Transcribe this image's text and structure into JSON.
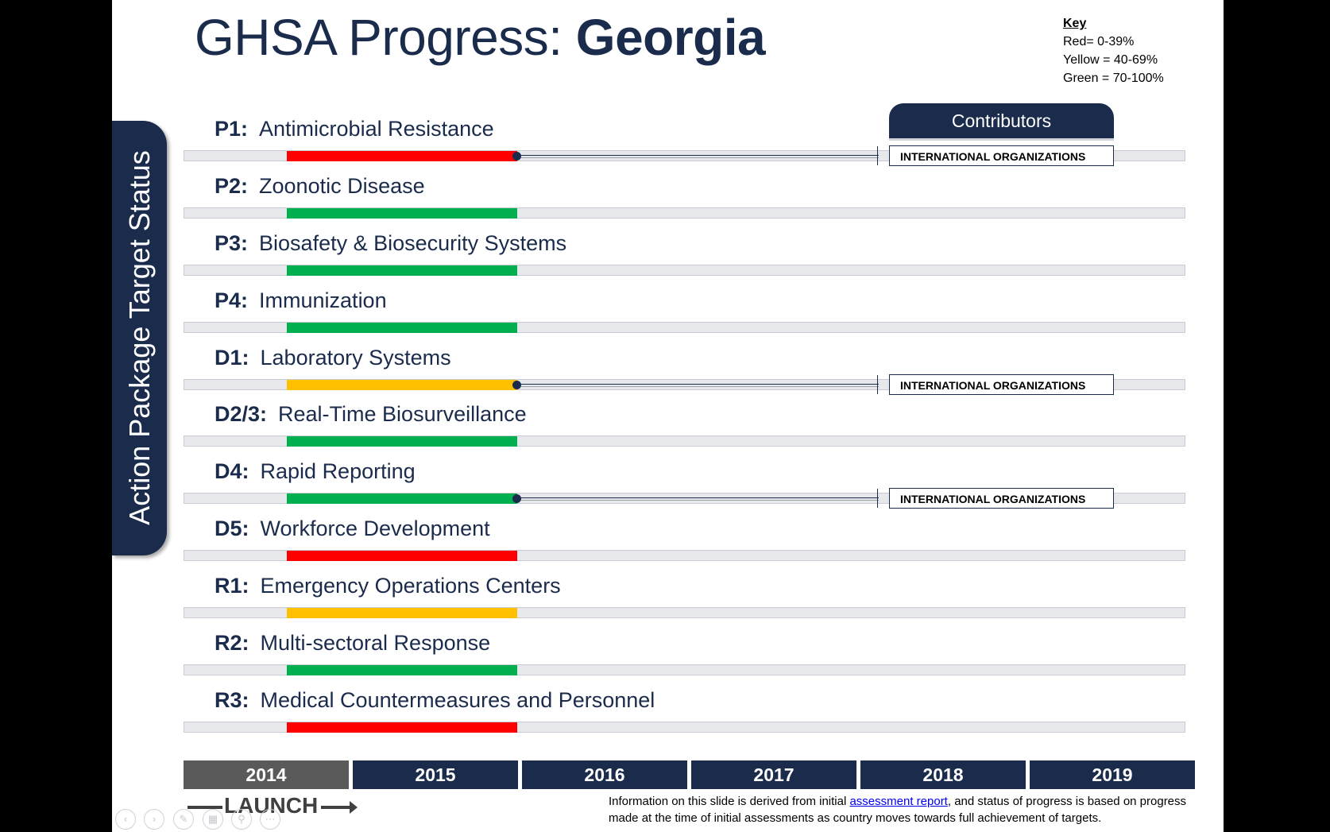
{
  "title": {
    "prefix": "GHSA Progress: ",
    "country": "Georgia"
  },
  "key": {
    "title": "Key",
    "items": [
      "Red= 0-39%",
      "Yellow = 40-69%",
      "Green = 70-100%"
    ],
    "colors": {
      "red": "#ff0000",
      "yellow": "#ffc000",
      "green": "#00b050"
    }
  },
  "side_label": "Action Package Target Status",
  "contributors_header": "Contributors",
  "rows": [
    {
      "code": "P1:",
      "name": "Antimicrobial Resistance",
      "status": "red",
      "contributor": "INTERNATIONAL ORGANIZATIONS"
    },
    {
      "code": "P2:",
      "name": "Zoonotic Disease",
      "status": "green",
      "contributor": ""
    },
    {
      "code": "P3:",
      "name": "Biosafety & Biosecurity Systems",
      "status": "green",
      "contributor": ""
    },
    {
      "code": "P4:",
      "name": "Immunization",
      "status": "green",
      "contributor": ""
    },
    {
      "code": "D1:",
      "name": "Laboratory Systems",
      "status": "yellow",
      "contributor": "INTERNATIONAL ORGANIZATIONS"
    },
    {
      "code": "D2/3:",
      "name": "Real-Time Biosurveillance",
      "status": "green",
      "contributor": ""
    },
    {
      "code": "D4:",
      "name": "Rapid Reporting",
      "status": "green",
      "contributor": "INTERNATIONAL ORGANIZATIONS"
    },
    {
      "code": "D5:",
      "name": "Workforce Development",
      "status": "red",
      "contributor": ""
    },
    {
      "code": "R1:",
      "name": "Emergency Operations Centers",
      "status": "yellow",
      "contributor": ""
    },
    {
      "code": "R2:",
      "name": "Multi-sectoral Response",
      "status": "green",
      "contributor": ""
    },
    {
      "code": "R3:",
      "name": "Medical Countermeasures and Personnel",
      "status": "red",
      "contributor": ""
    }
  ],
  "years": [
    "2014",
    "2015",
    "2016",
    "2017",
    "2018",
    "2019"
  ],
  "current_year": "2014",
  "launch_label": "LAUNCH",
  "footnote": {
    "before": "Information on this slide is derived from initial ",
    "link": "assessment report",
    "after": ",  and status of progress is based on progress made at the time of initial assessments as country moves towards full achievement of targets."
  }
}
